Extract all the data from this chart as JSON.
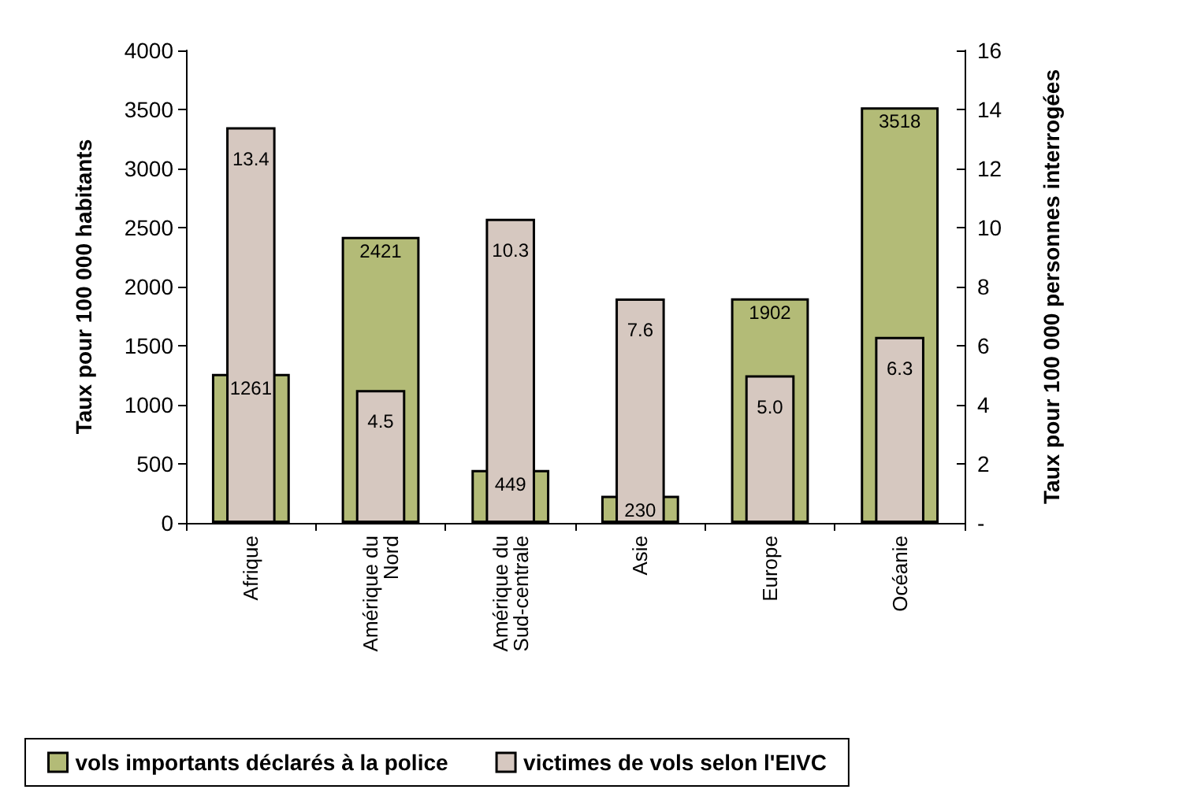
{
  "chart_data": {
    "type": "bar",
    "categories": [
      "Afrique",
      "Amérique du Nord",
      "Amérique du Sud-centrale",
      "Asie",
      "Europe",
      "Océanie"
    ],
    "ylabel": "Taux pour 100 000 habitants",
    "y2label": "Taux pour 100 000 personnes interrogées",
    "series": [
      {
        "name": "vols importants déclarés à la police",
        "color": "#b3bb77",
        "values": [
          1261,
          2421,
          449,
          230,
          1902,
          3518
        ],
        "value_labels": [
          "1261",
          "2421",
          "449",
          "230",
          "1902",
          "3518"
        ]
      },
      {
        "name": "victimes de vols selon l'EIVC",
        "color": "#d6c8c0",
        "axis": "y2",
        "values": [
          13.4,
          4.5,
          10.3,
          7.6,
          5.0,
          6.3
        ],
        "value_labels": [
          "13.4",
          "4.5",
          "10.3",
          "7.6",
          "5.0",
          "6.3"
        ]
      }
    ],
    "ylim": [
      0,
      4000
    ],
    "yticks": [
      0,
      500,
      1000,
      1500,
      2000,
      2500,
      3000,
      3500,
      4000
    ],
    "y2lim": [
      0,
      16
    ],
    "y2ticks": [
      {
        "value": 0,
        "label": "-"
      },
      2,
      4,
      6,
      8,
      10,
      12,
      14,
      16
    ],
    "legend": "bottom",
    "grid": false
  }
}
